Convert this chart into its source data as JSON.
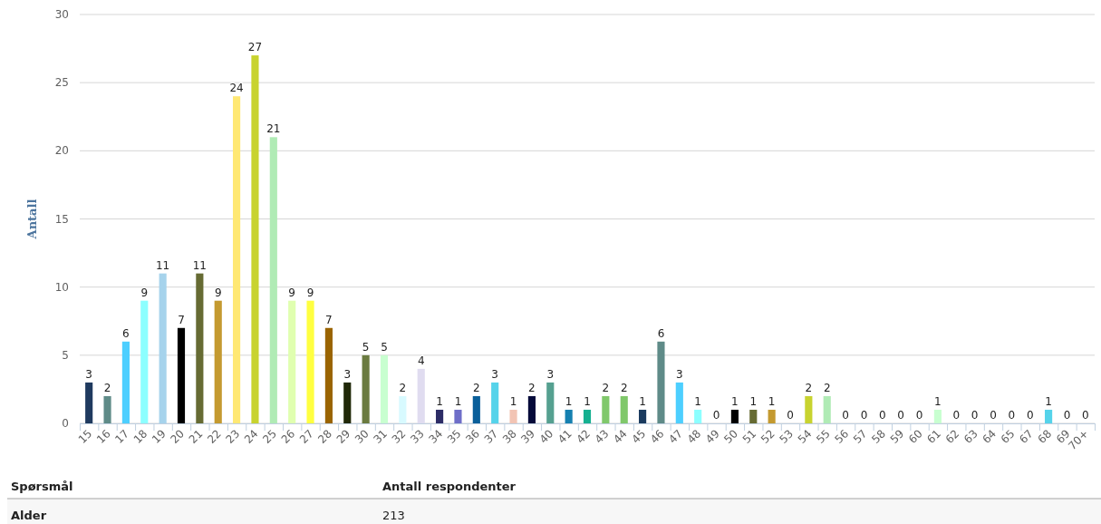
{
  "chart_data": {
    "type": "bar",
    "ylabel": "Antall",
    "categories": [
      "15",
      "16",
      "17",
      "18",
      "19",
      "20",
      "21",
      "22",
      "23",
      "24",
      "25",
      "26",
      "27",
      "28",
      "29",
      "30",
      "31",
      "32",
      "33",
      "34",
      "35",
      "36",
      "37",
      "38",
      "39",
      "40",
      "41",
      "42",
      "43",
      "44",
      "45",
      "46",
      "47",
      "48",
      "49",
      "50",
      "51",
      "52",
      "53",
      "54",
      "55",
      "56",
      "57",
      "58",
      "59",
      "60",
      "61",
      "62",
      "63",
      "64",
      "65",
      "67",
      "68",
      "69",
      "70+"
    ],
    "values": [
      3,
      2,
      6,
      9,
      11,
      7,
      11,
      9,
      24,
      27,
      21,
      9,
      9,
      7,
      3,
      5,
      5,
      2,
      4,
      1,
      1,
      2,
      3,
      1,
      2,
      3,
      1,
      1,
      2,
      2,
      1,
      6,
      3,
      1,
      0,
      1,
      1,
      1,
      0,
      2,
      2,
      0,
      0,
      0,
      0,
      0,
      1,
      0,
      0,
      0,
      0,
      0,
      1,
      0,
      0
    ],
    "colors": [
      "#1f3a5f",
      "#5f8b88",
      "#4dcfff",
      "#8cffff",
      "#a6d3ec",
      "#000000",
      "#666b33",
      "#c49a30",
      "#ffe873",
      "#c8d32f",
      "#b0ebb5",
      "#e0ffb0",
      "#ffff40",
      "#9a6400",
      "#202808",
      "#6b7b40",
      "#c8ffd0",
      "#d8faff",
      "#e0dcf0",
      "#2c2c66",
      "#6e6ec8",
      "#0a5f9a",
      "#55d3ea",
      "#f2c4b4",
      "#050a3a",
      "#55a090",
      "#1580b0",
      "#15b090",
      "#80c86b",
      "#80c86b",
      "#1a3a5e",
      "#5f8b88",
      "#4dcfff",
      "#8cffff",
      "#a6d3ec",
      "#000000",
      "#666b33",
      "#c49a30",
      "#ffe873",
      "#c8d32f",
      "#b0ebb5",
      "#e0ffb0",
      "#ffff40",
      "#9a6400",
      "#202808",
      "#6b7b40",
      "#c8ffd0",
      "#d8faff",
      "#e0dcf0",
      "#2c2c66",
      "#6e6ec8",
      "#0a5f9a",
      "#55d3ea",
      "#f2c4b4",
      "#050a3a"
    ],
    "ylim": [
      0,
      30
    ],
    "yticks": [
      0,
      5,
      10,
      15,
      20,
      25,
      30
    ],
    "grid": "y",
    "data_labels": true,
    "annotations": [
      "Spørsmål",
      "Antall respondenter",
      "Alder",
      "213"
    ]
  }
}
